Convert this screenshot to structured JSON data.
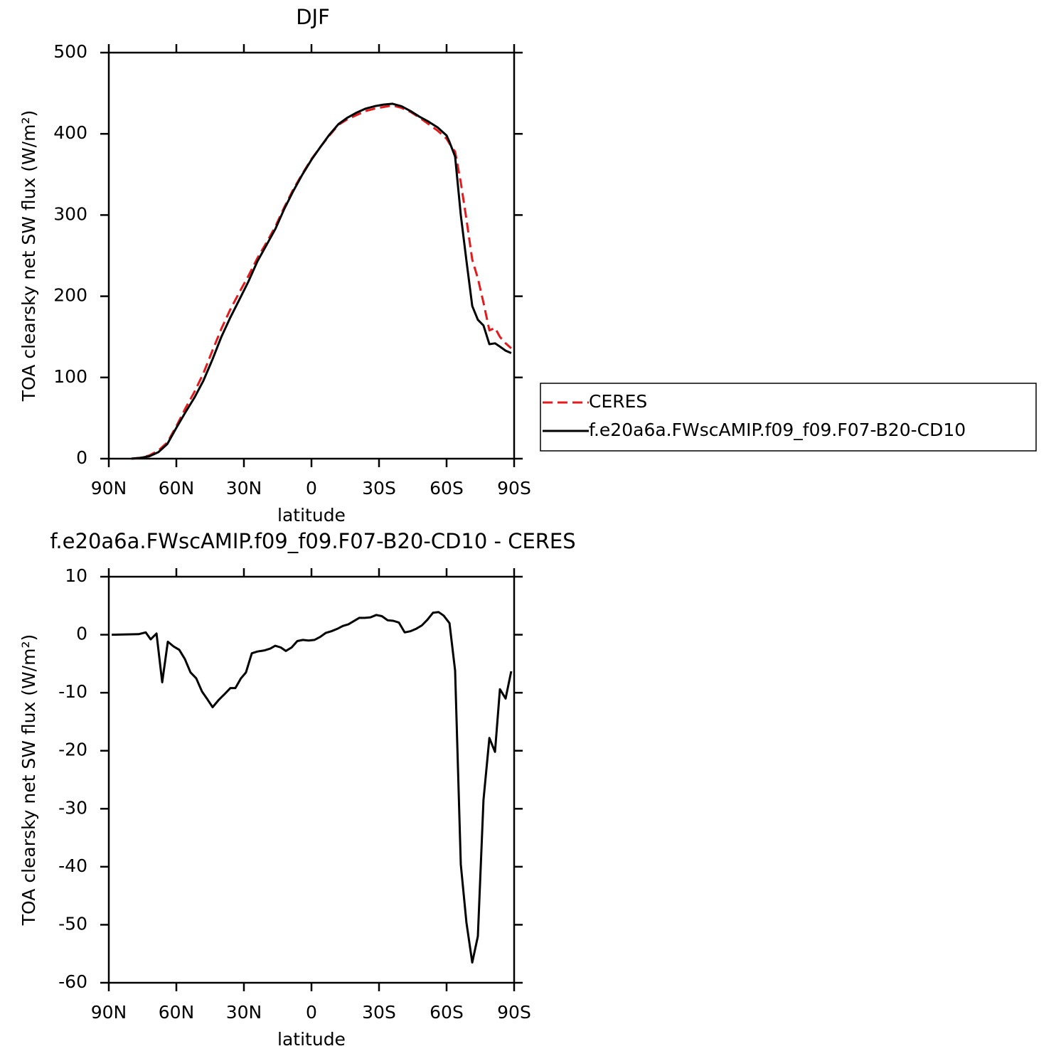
{
  "chart_data": [
    {
      "type": "line",
      "title": "DJF",
      "xlabel": "latitude",
      "ylabel": "TOA clearsky net SW flux (W/m²)",
      "xlim": [
        90,
        -90
      ],
      "xticks": [
        {
          "value": 90,
          "label": "90N"
        },
        {
          "value": 60,
          "label": "60N"
        },
        {
          "value": 30,
          "label": "30N"
        },
        0,
        {
          "value": -30,
          "label": "30S"
        },
        {
          "value": -60,
          "label": "60S"
        },
        {
          "value": -90,
          "label": "90S"
        }
      ],
      "ylim": [
        0,
        500
      ],
      "yticks": [
        0,
        100,
        200,
        300,
        400,
        500
      ],
      "legend": "right",
      "x": [
        80,
        76,
        72,
        68,
        64,
        60,
        56,
        52,
        48,
        44,
        40,
        36,
        32,
        28,
        24,
        20,
        16,
        12,
        8,
        4,
        0,
        -4,
        -8,
        -12,
        -16,
        -20,
        -24,
        -28,
        -32,
        -36,
        -40,
        -44,
        -48,
        -52,
        -56,
        -60,
        -61.3,
        -63.8,
        -66.3,
        -68.8,
        -71.4,
        -73.9,
        -76.4,
        -79,
        -81.5,
        -83.7,
        -86.2,
        -88.7
      ],
      "series": [
        {
          "name": "CERES",
          "color": "#e41a1c",
          "style": "dashed",
          "values": [
            0,
            1,
            4,
            10,
            20,
            40,
            62,
            82,
            105,
            133,
            160,
            184,
            205,
            225,
            247,
            266,
            286,
            310,
            332,
            351,
            369,
            384,
            398,
            411,
            418,
            423,
            428,
            431,
            433,
            435,
            432,
            427,
            420,
            412,
            404,
            394,
            388,
            378,
            340,
            295,
            245,
            222,
            192,
            158,
            161,
            150,
            142,
            136
          ]
        },
        {
          "name": "f.e20a6a.FWscAMIP.f09_f09.F07-B20-CD10",
          "color": "#000000",
          "style": "solid",
          "values": [
            0,
            1,
            3,
            8,
            18,
            38,
            57,
            75,
            96,
            122,
            150,
            174,
            196,
            218,
            243,
            263,
            283,
            308,
            330,
            350,
            368,
            384,
            399,
            412,
            420,
            426,
            431,
            434,
            436,
            437,
            434,
            428,
            421,
            415,
            408,
            398,
            390,
            372,
            300,
            244,
            188,
            171,
            164,
            141,
            142,
            138,
            133,
            130
          ]
        }
      ]
    },
    {
      "type": "line",
      "title": "f.e20a6a.FWscAMIP.f09_f09.F07-B20-CD10 - CERES",
      "xlabel": "latitude",
      "ylabel": "TOA clearsky net SW flux (W/m²)",
      "xlim": [
        90,
        -90
      ],
      "xticks": [
        {
          "value": 90,
          "label": "90N"
        },
        {
          "value": 60,
          "label": "60N"
        },
        {
          "value": 30,
          "label": "30N"
        },
        0,
        {
          "value": -30,
          "label": "30S"
        },
        {
          "value": -60,
          "label": "60S"
        },
        {
          "value": -90,
          "label": "90S"
        }
      ],
      "ylim": [
        -60,
        10
      ],
      "yticks": [
        -60,
        -50,
        -40,
        -30,
        -20,
        -10,
        0,
        10
      ],
      "x": [
        88.7,
        76.7,
        73.6,
        71.4,
        68.8,
        66.3,
        63.8,
        61.3,
        58.7,
        56.2,
        53.7,
        51.2,
        48.6,
        46.1,
        43.9,
        41.1,
        38.5,
        36.0,
        33.8,
        31.3,
        29.1,
        26.5,
        24.0,
        20.8,
        18.3,
        16.1,
        13.6,
        11.4,
        8.8,
        6.3,
        3.8,
        1.3,
        -1.3,
        -3.8,
        -6.3,
        -8.8,
        -11.4,
        -13.9,
        -16.4,
        -18.6,
        -21.2,
        -23.7,
        -26.2,
        -28.8,
        -31.3,
        -33.8,
        -36.3,
        -38.8,
        -41.4,
        -43.9,
        -46.4,
        -49.0,
        -51.5,
        -54.0,
        -56.5,
        -58.7,
        -61.3,
        -63.8,
        -66.3,
        -68.8,
        -71.4,
        -73.9,
        -76.4,
        -79.0,
        -81.5,
        -83.7,
        -86.2,
        -88.7
      ],
      "series": [
        {
          "color": "#000000",
          "style": "solid",
          "values": [
            0,
            0.1,
            0.4,
            -0.8,
            0.2,
            -8.2,
            -1.2,
            -2,
            -2.6,
            -4.2,
            -6.5,
            -7.5,
            -9.8,
            -11.2,
            -12.5,
            -11.2,
            -10.2,
            -9.2,
            -9.2,
            -7.5,
            -6.5,
            -3.2,
            -2.9,
            -2.7,
            -2.4,
            -1.9,
            -2.2,
            -2.8,
            -2.2,
            -1.1,
            -0.9,
            -1.0,
            -0.9,
            -0.4,
            0.3,
            0.6,
            1.0,
            1.5,
            1.8,
            2.3,
            2.9,
            2.9,
            3.0,
            3.4,
            3.2,
            2.5,
            2.4,
            2.1,
            0.4,
            0.6,
            1.0,
            1.6,
            2.6,
            3.8,
            3.9,
            3.3,
            2.0,
            -6.2,
            -39.6,
            -49.6,
            -56.5,
            -52,
            -28.5,
            -17.8,
            -20.2,
            -9.4,
            -11,
            -6.3
          ]
        }
      ]
    }
  ]
}
